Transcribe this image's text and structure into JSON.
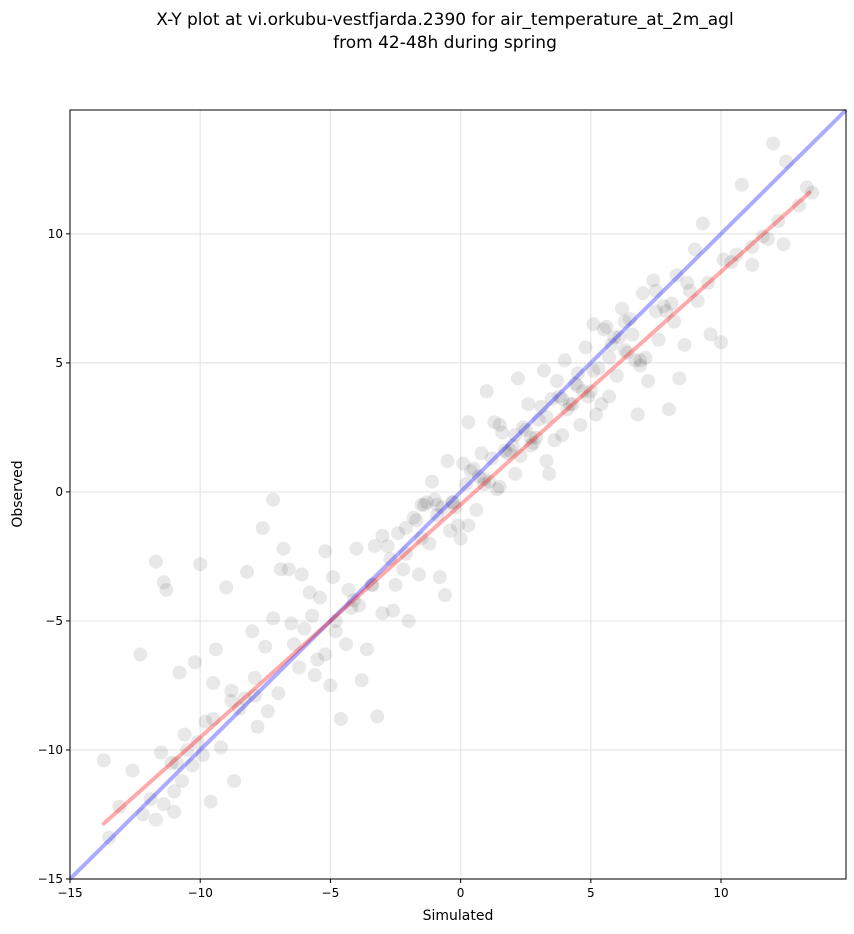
{
  "chart_data": {
    "type": "scatter",
    "title": "X-Y plot at vi.orkubu-vestfjarda.2390 for air_temperature_at_2m_agl",
    "subtitle": "from 42-48h during spring",
    "xlabel": "Simulated",
    "ylabel": "Observed",
    "xlim": [
      -15,
      14.8
    ],
    "ylim": [
      -15,
      14.8
    ],
    "xticks": [
      -15,
      -10,
      -5,
      0,
      5,
      10
    ],
    "yticks": [
      -15,
      -10,
      -5,
      0,
      5,
      10
    ],
    "xtick_labels": [
      "−15",
      "−10",
      "−5",
      "0",
      "5",
      "10"
    ],
    "ytick_labels": [
      "−15",
      "−10",
      "−5",
      "0",
      "5",
      "10"
    ],
    "grid": true,
    "point_color": "#000000",
    "point_alpha": 0.09,
    "reference_line": {
      "color": "#0000ff",
      "x": [
        -15,
        14.8
      ],
      "y": [
        -15,
        14.8
      ]
    },
    "regression_line": {
      "color": "#ff0000",
      "x": [
        -13.7,
        13.4
      ],
      "y": [
        -12.85,
        11.6
      ]
    },
    "points": {
      "x": [
        -13.7,
        -13.5,
        -13.1,
        -12.6,
        -12.3,
        -12.2,
        -11.9,
        -11.7,
        -11.5,
        -11.4,
        -11.3,
        -11.1,
        -11.0,
        -10.9,
        -10.8,
        -10.7,
        -10.6,
        -10.5,
        -10.3,
        -10.1,
        -10.0,
        -9.9,
        -9.8,
        -9.6,
        -9.5,
        -9.4,
        -9.2,
        -9.0,
        -8.8,
        -8.7,
        -8.5,
        -8.3,
        -8.0,
        -7.9,
        -7.8,
        -7.6,
        -7.4,
        -7.2,
        -7.0,
        -6.8,
        -6.6,
        -6.4,
        -6.2,
        -6.0,
        -5.8,
        -5.6,
        -5.4,
        -5.2,
        -5.0,
        -4.8,
        -4.6,
        -4.4,
        -4.2,
        -4.0,
        -3.8,
        -3.6,
        -3.4,
        -3.2,
        -3.0,
        -2.8,
        -2.6,
        -2.4,
        -2.2,
        -2.0,
        -1.8,
        -1.6,
        -1.4,
        -1.2,
        -1.0,
        -0.8,
        -0.6,
        -0.4,
        -0.2,
        0.0,
        0.2,
        0.4,
        0.6,
        0.8,
        1.0,
        1.2,
        1.4,
        1.6,
        1.8,
        2.0,
        2.2,
        2.4,
        2.6,
        2.8,
        3.0,
        3.2,
        3.4,
        3.6,
        3.8,
        4.0,
        4.2,
        4.4,
        4.6,
        4.8,
        5.0,
        5.2,
        5.4,
        5.6,
        5.8,
        6.0,
        6.2,
        6.4,
        6.6,
        6.8,
        7.0,
        7.2,
        7.4,
        7.6,
        7.8,
        8.0,
        8.2,
        8.4,
        8.6,
        8.8,
        9.0,
        9.3,
        9.6,
        10.0,
        10.4,
        10.8,
        11.2,
        11.6,
        12.0,
        12.2,
        12.5,
        13.0,
        13.3,
        13.5,
        -11.7,
        -11.4,
        -11.0,
        -10.2,
        -9.5,
        -8.8,
        -8.2,
        -7.9,
        -7.5,
        -7.2,
        -6.9,
        -6.5,
        -6.1,
        -5.7,
        -5.2,
        -4.8,
        -4.3,
        -3.9,
        -3.4,
        -3.0,
        -2.5,
        -2.1,
        -1.7,
        -1.3,
        -0.9,
        -0.5,
        -0.1,
        0.3,
        0.7,
        1.1,
        1.5,
        1.9,
        2.3,
        2.7,
        3.1,
        3.5,
        3.9,
        4.3,
        4.7,
        5.1,
        5.5,
        5.9,
        6.3,
        6.7,
        7.1,
        7.5,
        7.9,
        8.3,
        8.7,
        9.1,
        9.5,
        10.1,
        10.6,
        11.2,
        11.8,
        12.4,
        -1.5,
        -1.1,
        -0.7,
        -0.3,
        0.1,
        0.5,
        0.9,
        1.3,
        1.7,
        2.1,
        2.5,
        2.9,
        3.3,
        3.7,
        4.1,
        4.5,
        4.9,
        5.3,
        5.7,
        6.1,
        6.5,
        6.9,
        -5.5,
        -4.9,
        -4.1,
        -3.3,
        -2.7,
        -2.1,
        -1.5,
        -0.9,
        -0.3,
        0.3,
        0.9,
        1.5,
        2.1,
        2.7,
        3.3,
        3.9,
        4.5,
        5.1,
        5.7,
        6.3,
        6.9,
        7.5,
        8.1
      ],
      "y": [
        -10.4,
        -13.4,
        -12.2,
        -10.8,
        -6.3,
        -12.5,
        -11.9,
        -2.7,
        -10.1,
        -3.5,
        -3.8,
        -10.5,
        -12.4,
        -10.5,
        -7.0,
        -11.2,
        -9.4,
        -10.0,
        -10.6,
        -9.7,
        -2.8,
        -10.2,
        -8.9,
        -12.0,
        -8.8,
        -6.1,
        -9.9,
        -3.7,
        -7.7,
        -11.2,
        -8.4,
        -8.0,
        -5.4,
        -7.2,
        -9.1,
        -1.4,
        -8.5,
        -0.3,
        -7.8,
        -2.2,
        -3.0,
        -5.9,
        -6.8,
        -5.3,
        -3.9,
        -7.1,
        -4.1,
        -2.3,
        -7.5,
        -5.4,
        -8.8,
        -5.9,
        -4.5,
        -2.2,
        -7.3,
        -6.1,
        -3.6,
        -8.7,
        -4.7,
        -2.1,
        -4.6,
        -1.6,
        -3.0,
        -5.0,
        -1.0,
        -3.2,
        -0.5,
        -2.0,
        -0.3,
        -3.3,
        -4.0,
        -1.5,
        -0.6,
        -1.8,
        0.3,
        0.8,
        -0.7,
        1.5,
        3.9,
        1.3,
        0.1,
        2.3,
        1.5,
        1.8,
        4.4,
        2.5,
        3.4,
        1.9,
        2.8,
        4.7,
        0.7,
        2.0,
        3.7,
        5.1,
        3.4,
        4.2,
        2.6,
        5.6,
        3.9,
        3.0,
        3.4,
        6.4,
        5.7,
        4.5,
        7.1,
        5.4,
        6.1,
        3.0,
        7.7,
        4.3,
        8.2,
        5.9,
        7.2,
        3.2,
        6.6,
        4.4,
        5.7,
        7.8,
        9.4,
        10.4,
        6.1,
        5.8,
        8.9,
        11.9,
        8.8,
        9.9,
        13.5,
        10.5,
        12.8,
        11.1,
        11.8,
        11.6,
        -12.7,
        -12.1,
        -11.6,
        -6.6,
        -7.4,
        -8.1,
        -3.1,
        -7.9,
        -6.0,
        -4.9,
        -3.0,
        -5.1,
        -3.2,
        -4.8,
        -6.3,
        -5.0,
        -3.8,
        -4.4,
        -3.6,
        -1.7,
        -3.6,
        -2.4,
        -1.1,
        -0.4,
        -0.9,
        1.2,
        -1.3,
        -1.3,
        0.6,
        0.4,
        2.6,
        1.6,
        1.4,
        2.1,
        3.3,
        3.6,
        2.2,
        3.4,
        3.9,
        4.7,
        6.3,
        6.0,
        6.6,
        5.1,
        5.2,
        7.8,
        7.0,
        8.4,
        8.1,
        7.4,
        8.1,
        9.0,
        9.2,
        9.5,
        9.8,
        9.6,
        -0.5,
        0.4,
        -0.6,
        -0.4,
        1.1,
        0.9,
        0.5,
        2.7,
        1.6,
        0.7,
        2.4,
        2.1,
        1.2,
        4.3,
        3.2,
        4.6,
        3.7,
        4.8,
        5.2,
        6.0,
        6.7,
        4.9,
        -6.5,
        -3.3,
        -4.2,
        -2.1,
        -2.6,
        -1.4,
        -1.8,
        -0.5,
        -0.4,
        2.7,
        0.3,
        0.2,
        2.2,
        1.8,
        2.9,
        3.6,
        4.1,
        6.5,
        3.7,
        5.5,
        5.1,
        7.0,
        7.3
      ]
    }
  }
}
